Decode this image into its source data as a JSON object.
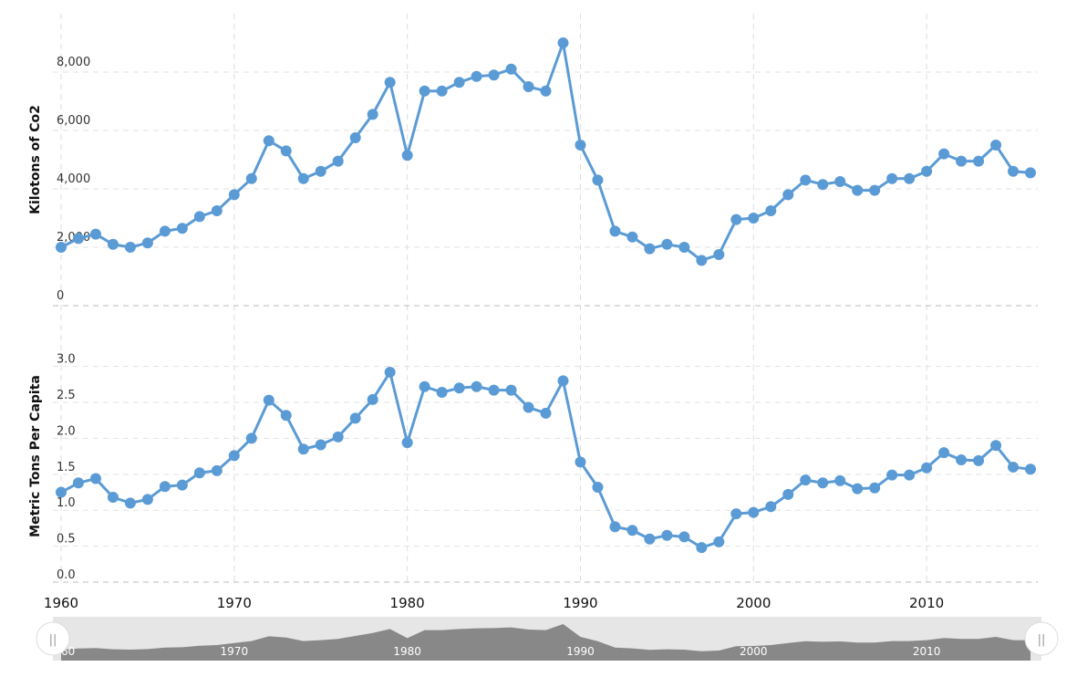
{
  "chart_data": [
    {
      "type": "line",
      "ylabel": "Kilotons of Co2",
      "ylim": [
        0,
        10000
      ],
      "yticks": [
        "0",
        "2,000",
        "4,000",
        "6,000",
        "8,000"
      ],
      "grid": true,
      "color": "#5b9bd5",
      "x": [
        1960,
        1961,
        1962,
        1963,
        1964,
        1965,
        1966,
        1967,
        1968,
        1969,
        1970,
        1971,
        1972,
        1973,
        1974,
        1975,
        1976,
        1977,
        1978,
        1979,
        1980,
        1981,
        1982,
        1983,
        1984,
        1985,
        1986,
        1987,
        1988,
        1989,
        1990,
        1991,
        1992,
        1993,
        1994,
        1995,
        1996,
        1997,
        1998,
        1999,
        2000,
        2001,
        2002,
        2003,
        2004,
        2005,
        2006,
        2007,
        2008,
        2009,
        2010,
        2011,
        2012,
        2013,
        2014,
        2015,
        2016
      ],
      "series": [
        {
          "values": [
            2000,
            2300,
            2450,
            2100,
            2000,
            2150,
            2550,
            2650,
            3050,
            3250,
            3800,
            4350,
            5650,
            5300,
            4350,
            4600,
            4950,
            5750,
            6550,
            7650,
            5150,
            7350,
            7350,
            7650,
            7850,
            7900,
            8100,
            7500,
            7350,
            9000,
            5500,
            4300,
            2550,
            2350,
            1950,
            2100,
            2000,
            1550,
            1750,
            2950,
            3000,
            3250,
            3800,
            4300,
            4150,
            4250,
            3950,
            3950,
            4350,
            4350,
            4600,
            5200,
            4950,
            4950,
            5500,
            4600,
            4550
          ]
        }
      ]
    },
    {
      "type": "line",
      "ylabel": "Metric Tons Per Capita",
      "ylim": [
        0,
        3.3
      ],
      "yticks": [
        "0.0",
        "0.5",
        "1.0",
        "1.5",
        "2.0",
        "2.5",
        "3.0"
      ],
      "grid": true,
      "color": "#5b9bd5",
      "x": [
        1960,
        1961,
        1962,
        1963,
        1964,
        1965,
        1966,
        1967,
        1968,
        1969,
        1970,
        1971,
        1972,
        1973,
        1974,
        1975,
        1976,
        1977,
        1978,
        1979,
        1980,
        1981,
        1982,
        1983,
        1984,
        1985,
        1986,
        1987,
        1988,
        1989,
        1990,
        1991,
        1992,
        1993,
        1994,
        1995,
        1996,
        1997,
        1998,
        1999,
        2000,
        2001,
        2002,
        2003,
        2004,
        2005,
        2006,
        2007,
        2008,
        2009,
        2010,
        2011,
        2012,
        2013,
        2014,
        2015,
        2016
      ],
      "series": [
        {
          "values": [
            1.25,
            1.38,
            1.44,
            1.18,
            1.1,
            1.15,
            1.33,
            1.35,
            1.52,
            1.55,
            1.76,
            2.0,
            2.53,
            2.32,
            1.85,
            1.91,
            2.02,
            2.28,
            2.54,
            2.92,
            1.94,
            2.72,
            2.64,
            2.7,
            2.72,
            2.67,
            2.67,
            2.43,
            2.35,
            2.8,
            1.67,
            1.32,
            0.77,
            0.72,
            0.6,
            0.65,
            0.63,
            0.48,
            0.56,
            0.95,
            0.97,
            1.05,
            1.22,
            1.42,
            1.38,
            1.41,
            1.3,
            1.31,
            1.49,
            1.49,
            1.59,
            1.8,
            1.7,
            1.69,
            1.9,
            1.6,
            1.57
          ]
        }
      ]
    }
  ],
  "xaxis": {
    "ticks": [
      "1960",
      "1970",
      "1980",
      "1990",
      "2000",
      "2010"
    ]
  },
  "navigator": {
    "ticks": [
      "1960",
      "1970",
      "1980",
      "1990",
      "2000",
      "2010"
    ],
    "left_handle_glyph": "||",
    "right_handle_glyph": "||"
  }
}
